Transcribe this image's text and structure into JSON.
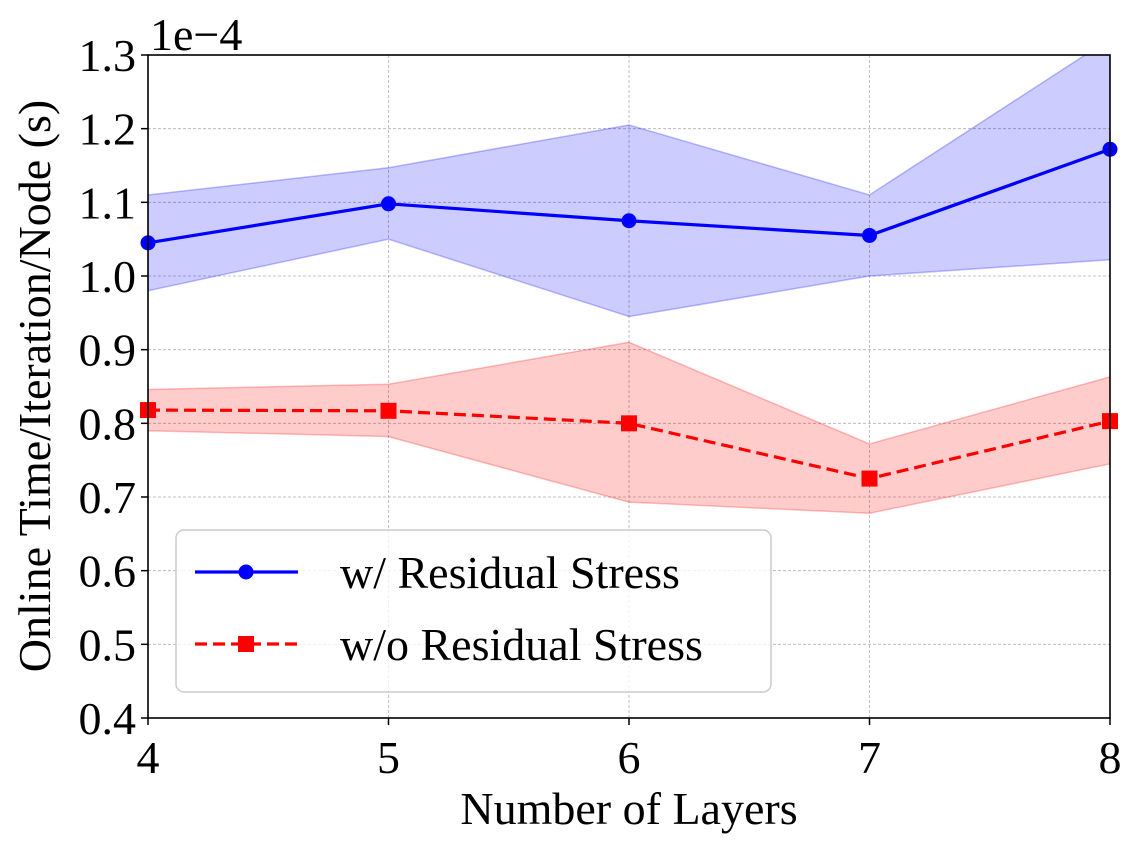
{
  "chart_data": {
    "type": "line",
    "title": "",
    "xlabel": "Number of Layers",
    "ylabel": "Online Time/Iteration/Node (s)",
    "y_scale_label": "1e−4",
    "x": [
      4,
      5,
      6,
      7,
      8
    ],
    "xlim": [
      4,
      8
    ],
    "ylim": [
      0.4,
      1.3
    ],
    "x_ticks": [
      "4",
      "5",
      "6",
      "7",
      "8"
    ],
    "y_ticks": [
      "0.4",
      "0.5",
      "0.6",
      "0.7",
      "0.8",
      "0.9",
      "1.0",
      "1.1",
      "1.2",
      "1.3"
    ],
    "grid": true,
    "legend_position": "lower-left",
    "series": [
      {
        "name": "w/ Residual Stress",
        "color": "#0000ff",
        "marker": "circle",
        "linestyle": "solid",
        "values": [
          1.045,
          1.098,
          1.075,
          1.055,
          1.172
        ],
        "band_lower": [
          0.98,
          1.05,
          0.945,
          1.0,
          1.022
        ],
        "band_upper": [
          1.11,
          1.147,
          1.205,
          1.11,
          1.322
        ]
      },
      {
        "name": "w/o Residual Stress",
        "color": "#ff0000",
        "marker": "square",
        "linestyle": "dashed",
        "values": [
          0.818,
          0.817,
          0.8,
          0.725,
          0.803
        ],
        "band_lower": [
          0.79,
          0.782,
          0.693,
          0.678,
          0.745
        ],
        "band_upper": [
          0.846,
          0.853,
          0.91,
          0.772,
          0.863
        ]
      }
    ]
  }
}
